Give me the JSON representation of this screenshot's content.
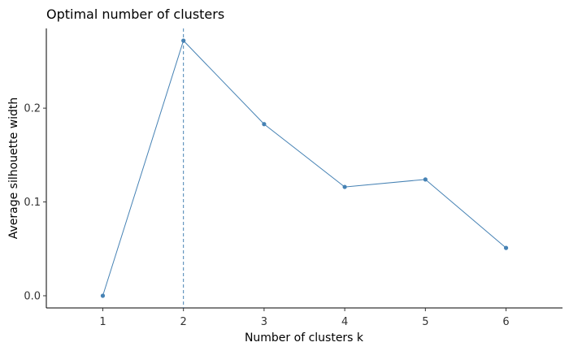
{
  "chart_data": {
    "type": "line",
    "title": "Optimal number of clusters",
    "xlabel": "Number of clusters k",
    "ylabel": "Average silhouette width",
    "x": [
      1,
      2,
      3,
      4,
      5,
      6
    ],
    "x_ticks": [
      "1",
      "2",
      "3",
      "4",
      "5",
      "6"
    ],
    "y_ticks": [
      "0.0",
      "0.1",
      "0.2"
    ],
    "series": [
      {
        "values": [
          0.0,
          0.272,
          0.183,
          0.116,
          0.124,
          0.051
        ]
      }
    ],
    "optimal_k": 2,
    "xlim": [
      0.3,
      6.7
    ],
    "ylim": [
      -0.013,
      0.285
    ],
    "grid": false,
    "line_color": "#4682B4",
    "vline_color": "#4682B4"
  }
}
